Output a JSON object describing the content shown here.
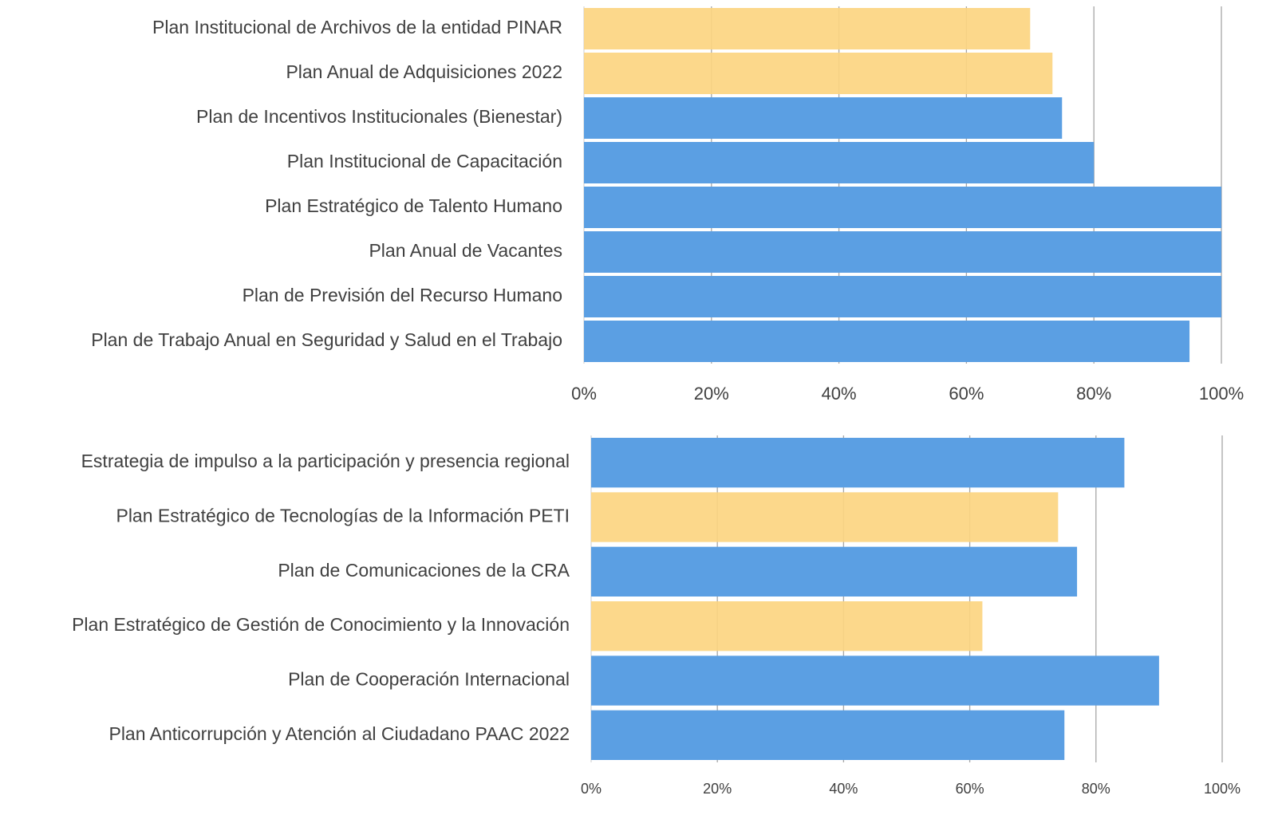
{
  "chart_data": [
    {
      "type": "barh",
      "categories": [
        "Plan Institucional de Archivos de la entidad PINAR",
        "Plan Anual de Adquisiciones 2022",
        "Plan de Incentivos Institucionales (Bienestar)",
        "Plan Institucional de Capacitación",
        "Plan Estratégico de Talento Humano",
        "Plan Anual de Vacantes",
        "Plan de Previsión del Recurso Humano",
        "Plan de Trabajo Anual en Seguridad y Salud en el Trabajo"
      ],
      "values": [
        70,
        73.5,
        75,
        80,
        100,
        100,
        100,
        95
      ],
      "colors": [
        "#fcd581",
        "#fcd581",
        "#5b9fe3",
        "#5b9fe3",
        "#5b9fe3",
        "#5b9fe3",
        "#5b9fe3",
        "#5b9fe3"
      ],
      "xlim": [
        0,
        100
      ],
      "xticks": [
        {
          "value": 0,
          "label": "0%"
        },
        {
          "value": 20,
          "label": "20%"
        },
        {
          "value": 40,
          "label": "40%"
        },
        {
          "value": 60,
          "label": "60%"
        },
        {
          "value": 80,
          "label": "80%"
        },
        {
          "value": 100,
          "label": "100%"
        }
      ],
      "grid": true
    },
    {
      "type": "barh",
      "categories": [
        "Estrategia de impulso a la participación y presencia regional",
        "Plan Estratégico de Tecnologías de la Información PETI",
        "Plan de Comunicaciones de la CRA",
        "Plan Estratégico de Gestión de Conocimiento y la Innovación",
        "Plan de Cooperación Internacional",
        "Plan Anticorrupción y Atención al Ciudadano PAAC 2022"
      ],
      "values": [
        84.5,
        74,
        77,
        62,
        90,
        75
      ],
      "colors": [
        "#5b9fe3",
        "#fcd581",
        "#5b9fe3",
        "#fcd581",
        "#5b9fe3",
        "#5b9fe3"
      ],
      "xlim": [
        0,
        100
      ],
      "xticks": [
        {
          "value": 0,
          "label": "0%"
        },
        {
          "value": 20,
          "label": "20%"
        },
        {
          "value": 40,
          "label": "40%"
        },
        {
          "value": 60,
          "label": "60%"
        },
        {
          "value": 80,
          "label": "80%"
        },
        {
          "value": 100,
          "label": "100%"
        }
      ],
      "grid": true
    }
  ]
}
